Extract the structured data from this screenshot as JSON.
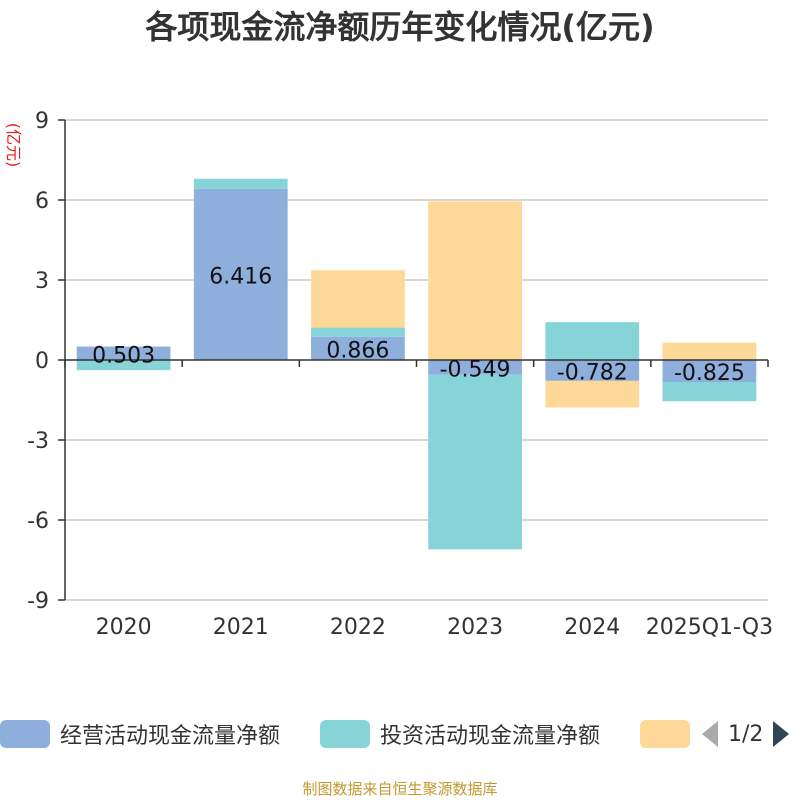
{
  "chart_data": {
    "type": "bar",
    "stacked": true,
    "title": "各项现金流净额历年变化情况(亿元)",
    "ylabel": "(亿元)",
    "categories": [
      "2020",
      "2021",
      "2022",
      "2023",
      "2024",
      "2025Q1-Q3"
    ],
    "ylim": [
      -9,
      9
    ],
    "yticks": [
      -9,
      -6,
      -3,
      0,
      3,
      6,
      9
    ],
    "grid": true,
    "legend_position": "bottom",
    "series": [
      {
        "name": "经营活动现金流量净额",
        "color": "#8eaedb",
        "values": [
          0.503,
          6.416,
          0.866,
          -0.549,
          -0.782,
          -0.825
        ],
        "data_labels": [
          "0.503",
          "6.416",
          "0.866",
          "-0.549",
          "-0.782",
          "-0.825"
        ]
      },
      {
        "name": "投资活动现金流量净额",
        "color": "#86d4d8",
        "values": [
          -0.38,
          0.38,
          0.35,
          -6.55,
          1.42,
          -0.72
        ]
      },
      {
        "name": "",
        "color": "#fdd898",
        "values": [
          0.0,
          0.0,
          2.15,
          5.95,
          -1.0,
          0.65
        ]
      }
    ]
  },
  "legend": {
    "items": [
      {
        "label": "经营活动现金流量净额",
        "color": "#8eaedb"
      },
      {
        "label": "投资活动现金流量净额",
        "color": "#86d4d8"
      },
      {
        "label": "",
        "color": "#fdd898"
      }
    ],
    "pager": {
      "text": "1/2",
      "prev_icon": "triangle-left-icon",
      "next_icon": "triangle-right-icon"
    }
  },
  "footer": "制图数据来自恒生聚源数据库"
}
